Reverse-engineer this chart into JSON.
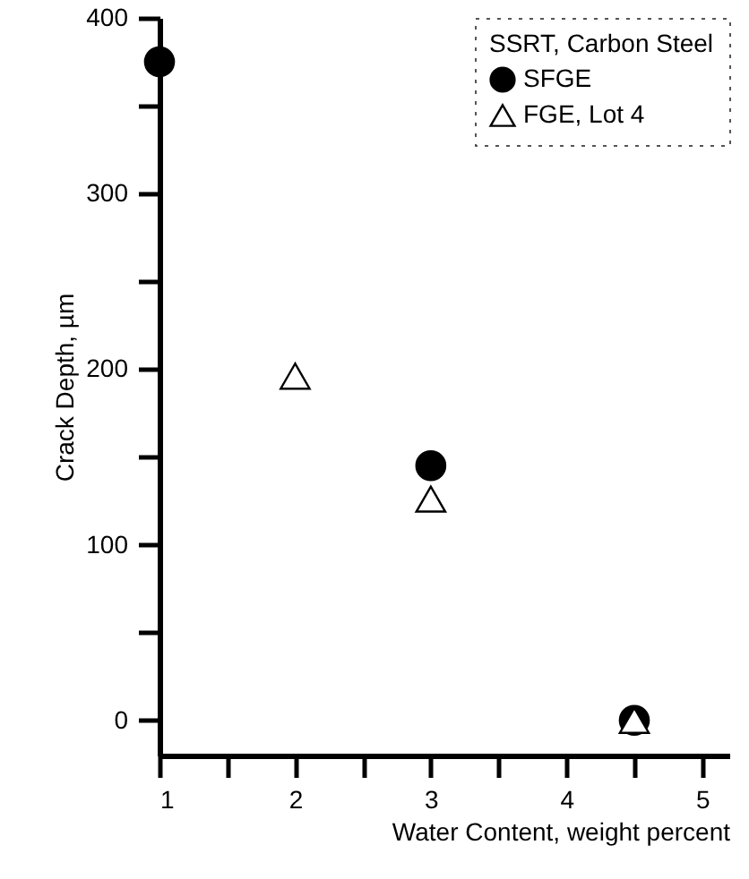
{
  "chart_data": {
    "type": "scatter",
    "xlabel": "Water Content, weight percent",
    "ylabel": "Crack Depth, µm",
    "legend_title": "SSRT, Carbon Steel",
    "legend": "top right",
    "grid": false,
    "xlim": [
      1,
      5.2
    ],
    "xticks": [
      1,
      {
        "value": 1.5,
        "label": null
      },
      2,
      {
        "value": 2.5,
        "label": null
      },
      3,
      {
        "value": 3.5,
        "label": null
      },
      4,
      {
        "value": 4.5,
        "label": null
      },
      5
    ],
    "ylim": [
      -20,
      400
    ],
    "yticks": [
      0,
      {
        "value": 50,
        "label": null
      },
      100,
      {
        "value": 150,
        "label": null
      },
      200,
      {
        "value": 250,
        "label": null
      },
      300,
      {
        "value": 350,
        "label": null
      },
      400
    ],
    "series": [
      {
        "name": "SFGE",
        "color": "#000000",
        "marker": "circle",
        "x": [
          1,
          3,
          4.5
        ],
        "values": [
          375,
          145,
          0
        ]
      },
      {
        "name": "FGE, Lot 4",
        "color": "#000000",
        "marker": "triangle",
        "x": [
          2,
          3,
          4.5
        ],
        "values": [
          196,
          126,
          0
        ]
      }
    ]
  }
}
